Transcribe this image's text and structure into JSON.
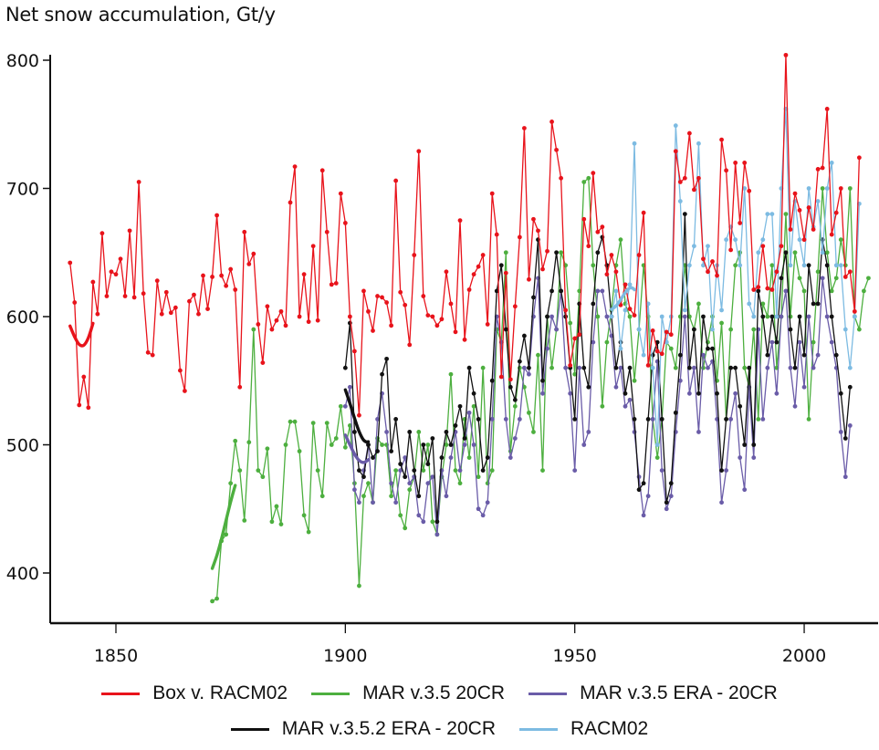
{
  "chart_data": {
    "type": "line",
    "title": "Net snow accumulation, Gt/y",
    "xlabel": "",
    "ylabel": "Net snow accumulation, Gt/y",
    "xlim": [
      1838,
      2018
    ],
    "ylim": [
      363,
      805
    ],
    "x_ticks": [
      1850,
      1900,
      1950,
      2000
    ],
    "y_ticks": [
      400,
      500,
      600,
      700,
      800
    ],
    "grid": false,
    "legend_placement": "bottom",
    "smoothed_trend_lines": true,
    "series": [
      {
        "name": "Box v. RACM02",
        "color": "#e8131b",
        "markers": true,
        "start_year": 1840,
        "values": [
          642,
          611,
          531,
          553,
          529,
          627,
          602,
          665,
          616,
          635,
          633,
          645,
          616,
          667,
          615,
          705,
          618,
          572,
          570,
          628,
          602,
          619,
          603,
          607,
          558,
          542,
          612,
          617,
          602,
          632,
          606,
          631,
          679,
          632,
          624,
          637,
          621,
          545,
          666,
          641,
          649,
          594,
          564,
          608,
          590,
          597,
          604,
          593,
          689,
          717,
          600,
          633,
          596,
          655,
          597,
          714,
          666,
          625,
          626,
          696,
          673,
          600,
          573,
          523,
          620,
          604,
          589,
          616,
          615,
          611,
          593,
          706,
          619,
          609,
          578,
          648,
          729,
          616,
          601,
          600,
          593,
          598,
          635,
          610,
          588,
          675,
          582,
          621,
          633,
          639,
          648,
          594,
          696,
          664,
          553,
          634,
          551,
          608,
          662,
          747,
          629,
          676,
          667,
          637,
          651,
          752,
          730,
          708,
          605,
          562,
          583,
          586,
          676,
          655,
          712,
          666,
          670,
          633,
          648,
          635,
          609,
          625,
          606,
          601,
          648,
          681,
          562,
          589,
          573,
          571,
          588,
          586,
          729,
          705,
          708,
          743,
          699,
          708,
          645,
          635,
          643,
          632,
          738,
          714,
          652,
          720,
          673,
          720,
          698,
          621,
          623,
          655,
          622,
          621,
          635,
          655,
          804,
          668,
          696,
          683,
          660,
          685,
          668,
          715,
          716,
          762,
          664,
          681,
          700,
          631,
          635,
          604,
          724
        ]
      },
      {
        "name": "MAR v.3.5 20CR",
        "color": "#4daf3f",
        "markers": true,
        "start_year": 1871,
        "values": [
          378,
          380,
          425,
          430,
          470,
          503,
          480,
          441,
          502,
          590,
          480,
          475,
          497,
          440,
          452,
          438,
          500,
          518,
          518,
          495,
          445,
          432,
          517,
          480,
          460,
          517,
          500,
          505,
          530,
          498,
          515,
          470,
          390,
          460,
          470,
          455,
          505,
          500,
          500,
          460,
          480,
          445,
          435,
          465,
          475,
          510,
          480,
          500,
          440,
          430,
          475,
          500,
          555,
          480,
          470,
          520,
          490,
          530,
          475,
          560,
          470,
          480,
          590,
          580,
          650,
          495,
          530,
          560,
          545,
          525,
          510,
          570,
          480,
          600,
          560,
          590,
          650,
          640,
          595,
          555,
          620,
          705,
          708,
          640,
          600,
          530,
          580,
          605,
          640,
          660,
          610,
          600,
          550,
          590,
          640,
          600,
          520,
          490,
          520,
          580,
          575,
          560,
          600,
          640,
          600,
          590,
          610,
          560,
          580,
          600,
          550,
          595,
          520,
          590,
          640,
          650,
          560,
          545,
          590,
          520,
          610,
          600,
          640,
          560,
          600,
          680,
          600,
          650,
          630,
          620,
          520,
          580,
          635,
          700,
          650,
          620,
          630,
          660,
          640,
          700,
          600,
          590,
          620,
          630
        ]
      },
      {
        "name": "MAR v.3.5 ERA - 20CR",
        "color": "#6a5ca8",
        "markers": true,
        "start_year": 1900,
        "values": [
          530,
          545,
          465,
          455,
          480,
          500,
          455,
          520,
          540,
          510,
          470,
          455,
          480,
          490,
          470,
          475,
          445,
          440,
          470,
          475,
          430,
          480,
          460,
          490,
          510,
          480,
          500,
          525,
          500,
          450,
          445,
          455,
          520,
          600,
          580,
          520,
          490,
          505,
          520,
          560,
          555,
          600,
          630,
          540,
          575,
          600,
          590,
          620,
          560,
          540,
          480,
          560,
          500,
          510,
          580,
          620,
          620,
          600,
          585,
          545,
          560,
          530,
          535,
          510,
          475,
          445,
          460,
          520,
          565,
          480,
          450,
          460,
          510,
          550,
          600,
          540,
          560,
          510,
          570,
          560,
          565,
          520,
          455,
          480,
          520,
          540,
          490,
          465,
          545,
          490,
          590,
          520,
          560,
          580,
          540,
          600,
          620,
          560,
          530,
          580,
          545,
          600,
          560,
          570,
          630,
          600,
          580,
          560,
          510,
          475,
          515
        ]
      },
      {
        "name": "MAR v.3.5.2 ERA - 20CR",
        "color": "#111111",
        "markers": true,
        "start_year": 1900,
        "values": [
          560,
          595,
          510,
          480,
          475,
          500,
          490,
          495,
          555,
          567,
          495,
          520,
          485,
          475,
          510,
          480,
          460,
          500,
          485,
          505,
          440,
          490,
          510,
          500,
          515,
          530,
          505,
          560,
          540,
          520,
          480,
          490,
          550,
          620,
          640,
          590,
          545,
          535,
          565,
          585,
          560,
          615,
          660,
          550,
          600,
          620,
          650,
          620,
          600,
          560,
          520,
          610,
          560,
          545,
          610,
          650,
          662,
          640,
          600,
          560,
          580,
          540,
          560,
          520,
          465,
          470,
          520,
          570,
          580,
          520,
          455,
          470,
          525,
          570,
          680,
          560,
          590,
          540,
          600,
          575,
          575,
          540,
          480,
          520,
          560,
          560,
          530,
          500,
          560,
          500,
          620,
          600,
          570,
          600,
          580,
          630,
          650,
          590,
          560,
          600,
          570,
          640,
          610,
          610,
          660,
          640,
          600,
          570,
          540,
          505,
          545
        ]
      },
      {
        "name": "RACM02",
        "color": "#7dbbe2",
        "markers": true,
        "start_year": 1958,
        "values": [
          600,
          620,
          575,
          605,
          625,
          735,
          590,
          570,
          610,
          560,
          500,
          600,
          580,
          600,
          749,
          690,
          605,
          640,
          655,
          735,
          640,
          655,
          590,
          640,
          605,
          660,
          670,
          660,
          640,
          700,
          610,
          600,
          650,
          660,
          680,
          680,
          600,
          700,
          762,
          640,
          690,
          660,
          640,
          700,
          670,
          690,
          650,
          700,
          720,
          640,
          640,
          590,
          560,
          600,
          688
        ]
      }
    ]
  }
}
